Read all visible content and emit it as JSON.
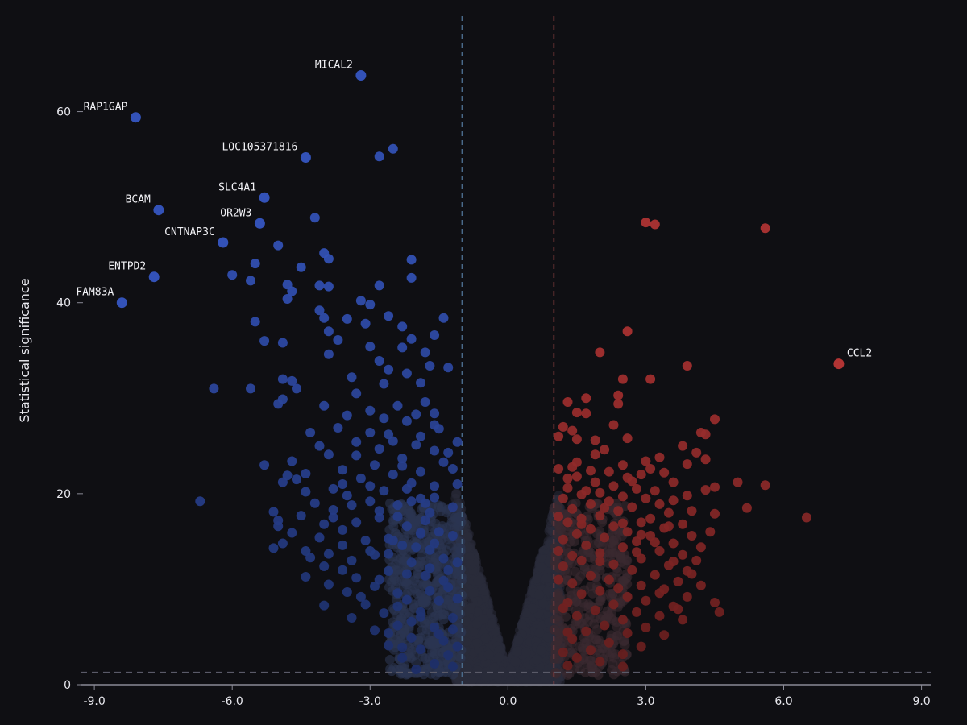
{
  "chart_data": {
    "type": "scatter",
    "title": "",
    "xlabel": "",
    "ylabel": "Statistical significance",
    "xlim": [
      -9.3,
      9.2
    ],
    "ylim": [
      0,
      70
    ],
    "x_ticks": [
      "-9.0",
      "-6.0",
      "-3.0",
      "0.0",
      "3.0",
      "6.0",
      "9.0"
    ],
    "x_tick_values": [
      -9,
      -6,
      -3,
      0,
      3,
      6,
      9
    ],
    "y_ticks": [
      "0",
      "20",
      "40",
      "60"
    ],
    "y_tick_values": [
      0,
      20,
      40,
      60
    ],
    "fold_change_thresholds": [
      -1,
      1
    ],
    "significance_threshold": 1.3,
    "colors": {
      "background": "#0f0f13",
      "down": "#3352b8",
      "up": "#b23434",
      "neutral": "#2a2c3a",
      "axis": "#8a8a96",
      "down_threshold_line": "#4a6a8a",
      "up_threshold_line": "#a04848",
      "sig_line": "#5a5a68"
    },
    "labeled_points": [
      {
        "gene": "MICAL2",
        "x": -3.2,
        "y": 63.8
      },
      {
        "gene": "RAP1GAP",
        "x": -8.1,
        "y": 59.4
      },
      {
        "gene": "LOC105371816",
        "x": -4.4,
        "y": 55.2
      },
      {
        "gene": "SLC4A1",
        "x": -5.3,
        "y": 51.0
      },
      {
        "gene": "BCAM",
        "x": -7.6,
        "y": 49.7
      },
      {
        "gene": "OR2W3",
        "x": -5.4,
        "y": 48.3
      },
      {
        "gene": "CNTNAP3C",
        "x": -6.2,
        "y": 46.3
      },
      {
        "gene": "ENTPD2",
        "x": -7.7,
        "y": 42.7
      },
      {
        "gene": "FAM83A",
        "x": -8.4,
        "y": 40.0
      },
      {
        "gene": "CCL2",
        "x": 7.2,
        "y": 33.6
      }
    ],
    "down_points": [
      [
        -2.5,
        56.1
      ],
      [
        -2.8,
        55.3
      ],
      [
        -4.2,
        48.9
      ],
      [
        -5.0,
        46.0
      ],
      [
        -4.0,
        45.2
      ],
      [
        -3.9,
        44.6
      ],
      [
        -2.1,
        44.5
      ],
      [
        -5.5,
        44.1
      ],
      [
        -4.5,
        43.7
      ],
      [
        -6.0,
        42.9
      ],
      [
        -2.1,
        42.6
      ],
      [
        -5.6,
        42.3
      ],
      [
        -4.8,
        41.9
      ],
      [
        -2.8,
        41.8
      ],
      [
        -4.1,
        41.8
      ],
      [
        -3.9,
        41.7
      ],
      [
        -4.7,
        41.2
      ],
      [
        -4.8,
        40.4
      ],
      [
        -3.2,
        40.2
      ],
      [
        -3.0,
        39.8
      ],
      [
        -4.1,
        39.2
      ],
      [
        -2.6,
        38.6
      ],
      [
        -4.0,
        38.4
      ],
      [
        -1.4,
        38.4
      ],
      [
        -3.5,
        38.3
      ],
      [
        -5.5,
        38.0
      ],
      [
        -3.1,
        37.8
      ],
      [
        -2.3,
        37.5
      ],
      [
        -3.9,
        37.0
      ],
      [
        -1.6,
        36.6
      ],
      [
        -2.1,
        36.2
      ],
      [
        -3.7,
        36.1
      ],
      [
        -5.3,
        36.0
      ],
      [
        -4.9,
        35.8
      ],
      [
        -3.0,
        35.4
      ],
      [
        -2.3,
        35.3
      ],
      [
        -1.8,
        34.8
      ],
      [
        -3.9,
        34.6
      ],
      [
        -2.8,
        33.9
      ],
      [
        -1.7,
        33.4
      ],
      [
        -1.3,
        33.2
      ],
      [
        -2.6,
        33.0
      ],
      [
        -2.2,
        32.6
      ],
      [
        -3.4,
        32.2
      ],
      [
        -4.9,
        32.0
      ],
      [
        -4.7,
        31.8
      ],
      [
        -6.4,
        31.0
      ],
      [
        -5.6,
        31.0
      ],
      [
        -4.6,
        31.0
      ],
      [
        -2.7,
        31.5
      ],
      [
        -1.9,
        31.6
      ],
      [
        -3.3,
        30.5
      ],
      [
        -4.9,
        29.9
      ],
      [
        -5.0,
        29.4
      ],
      [
        -4.0,
        29.2
      ],
      [
        -2.4,
        29.2
      ],
      [
        -2.0,
        28.3
      ],
      [
        -1.6,
        28.4
      ],
      [
        -3.0,
        28.7
      ],
      [
        -3.5,
        28.2
      ],
      [
        -2.2,
        27.6
      ],
      [
        -1.6,
        27.2
      ],
      [
        -3.7,
        26.9
      ],
      [
        -4.3,
        26.4
      ],
      [
        -2.6,
        26.2
      ],
      [
        -1.9,
        26.0
      ],
      [
        -1.1,
        25.4
      ],
      [
        -3.3,
        25.4
      ],
      [
        -4.1,
        25.0
      ],
      [
        -2.8,
        24.7
      ],
      [
        -1.6,
        24.5
      ],
      [
        -3.9,
        24.1
      ],
      [
        -2.3,
        23.7
      ],
      [
        -1.4,
        23.3
      ],
      [
        -4.7,
        23.4
      ],
      [
        -2.9,
        23.0
      ],
      [
        -5.3,
        23.0
      ],
      [
        -3.6,
        22.5
      ],
      [
        -4.4,
        22.1
      ],
      [
        -1.9,
        22.3
      ],
      [
        -1.2,
        22.6
      ],
      [
        -2.5,
        22.0
      ],
      [
        -4.8,
        21.9
      ],
      [
        -3.2,
        21.6
      ],
      [
        -4.9,
        21.2
      ],
      [
        -4.6,
        21.5
      ],
      [
        -2.1,
        21.1
      ],
      [
        -1.6,
        20.8
      ],
      [
        -3.8,
        20.5
      ],
      [
        -4.4,
        20.2
      ],
      [
        -2.7,
        20.3
      ],
      [
        -3.5,
        19.8
      ],
      [
        -1.9,
        19.5
      ],
      [
        -6.7,
        19.2
      ],
      [
        -4.2,
        19.0
      ],
      [
        -3.0,
        19.2
      ],
      [
        -2.4,
        18.8
      ],
      [
        -3.8,
        18.3
      ],
      [
        -5.1,
        18.1
      ],
      [
        -1.7,
        18.0
      ],
      [
        -4.5,
        17.7
      ],
      [
        -5.0,
        17.2
      ],
      [
        -2.8,
        17.5
      ],
      [
        -3.3,
        17.0
      ],
      [
        -4.0,
        16.8
      ],
      [
        -2.2,
        16.6
      ],
      [
        -5.0,
        16.6
      ],
      [
        -3.6,
        16.2
      ],
      [
        -4.7,
        15.9
      ],
      [
        -1.9,
        15.8
      ],
      [
        -4.1,
        15.4
      ],
      [
        -2.6,
        15.3
      ],
      [
        -3.1,
        15.1
      ],
      [
        -4.9,
        14.8
      ],
      [
        -3.6,
        14.6
      ],
      [
        -2.3,
        14.6
      ],
      [
        -5.1,
        14.3
      ],
      [
        -4.4,
        14.0
      ],
      [
        -1.7,
        14.1
      ],
      [
        -3.9,
        13.7
      ],
      [
        -2.9,
        13.6
      ],
      [
        -4.3,
        13.3
      ],
      [
        -3.4,
        13.0
      ],
      [
        -2.1,
        12.8
      ],
      [
        -4.0,
        12.4
      ],
      [
        -3.6,
        12.0
      ],
      [
        -2.6,
        11.9
      ],
      [
        -4.4,
        11.3
      ],
      [
        -3.3,
        11.2
      ],
      [
        -1.8,
        11.4
      ],
      [
        -3.9,
        10.5
      ],
      [
        -2.9,
        10.3
      ],
      [
        -3.5,
        9.7
      ],
      [
        -2.4,
        9.6
      ],
      [
        -4.0,
        8.3
      ],
      [
        -3.1,
        8.4
      ],
      [
        -2.2,
        8.9
      ],
      [
        -2.7,
        7.5
      ],
      [
        -1.9,
        7.6
      ],
      [
        -3.4,
        7.0
      ],
      [
        -2.4,
        6.2
      ],
      [
        -1.6,
        6.0
      ],
      [
        -2.9,
        5.7
      ],
      [
        -2.1,
        4.9
      ],
      [
        -1.4,
        4.6
      ],
      [
        -2.6,
        4.1
      ],
      [
        -1.9,
        3.7
      ],
      [
        -1.3,
        3.1
      ],
      [
        -2.3,
        2.8
      ],
      [
        -1.6,
        2.2
      ],
      [
        -1.2,
        1.9
      ],
      [
        -2.0,
        1.6
      ],
      [
        -1.1,
        4.0
      ],
      [
        -1.2,
        7.0
      ],
      [
        -1.3,
        10.2
      ],
      [
        -1.4,
        13.2
      ],
      [
        -1.5,
        16.0
      ],
      [
        -1.2,
        18.6
      ],
      [
        -1.1,
        21.0
      ],
      [
        -1.6,
        19.6
      ],
      [
        -1.8,
        17.2
      ],
      [
        -2.0,
        14.4
      ],
      [
        -2.2,
        11.6
      ],
      [
        -2.4,
        8.2
      ],
      [
        -2.6,
        5.4
      ],
      [
        -1.5,
        8.8
      ],
      [
        -1.7,
        12.2
      ],
      [
        -1.9,
        15.9
      ],
      [
        -2.1,
        19.2
      ],
      [
        -2.3,
        22.9
      ],
      [
        -2.5,
        25.5
      ],
      [
        -2.7,
        27.9
      ],
      [
        -3.0,
        26.4
      ],
      [
        -3.3,
        24.0
      ],
      [
        -3.6,
        21.0
      ],
      [
        -3.8,
        17.5
      ],
      [
        -3.0,
        14.0
      ],
      [
        -2.8,
        11.0
      ],
      [
        -3.2,
        9.2
      ],
      [
        -1.3,
        24.3
      ],
      [
        -1.5,
        26.8
      ],
      [
        -1.8,
        29.6
      ],
      [
        -2.0,
        25.1
      ],
      [
        -2.2,
        20.5
      ],
      [
        -2.4,
        17.6
      ],
      [
        -2.6,
        13.7
      ],
      [
        -1.4,
        10.9
      ],
      [
        -1.6,
        14.8
      ],
      [
        -1.8,
        19.0
      ],
      [
        -1.2,
        15.6
      ],
      [
        -1.3,
        12.0
      ],
      [
        -1.7,
        9.8
      ],
      [
        -1.9,
        7.1
      ],
      [
        -2.1,
        6.6
      ],
      [
        -2.3,
        3.9
      ],
      [
        -1.5,
        5.3
      ],
      [
        -1.1,
        12.8
      ],
      [
        -1.1,
        9.0
      ],
      [
        -1.2,
        5.8
      ],
      [
        -2.8,
        18.2
      ],
      [
        -3.0,
        20.8
      ],
      [
        -3.4,
        18.8
      ],
      [
        -2.5,
        15.1
      ]
    ],
    "up_points": [
      [
        5.6,
        47.8
      ],
      [
        3.0,
        48.4
      ],
      [
        3.2,
        48.2
      ],
      [
        2.6,
        37.0
      ],
      [
        2.0,
        34.8
      ],
      [
        3.9,
        33.4
      ],
      [
        3.1,
        32.0
      ],
      [
        2.5,
        32.0
      ],
      [
        1.7,
        30.0
      ],
      [
        2.4,
        30.3
      ],
      [
        1.3,
        29.6
      ],
      [
        2.4,
        29.4
      ],
      [
        1.5,
        28.5
      ],
      [
        1.7,
        28.4
      ],
      [
        4.5,
        27.8
      ],
      [
        1.2,
        27.0
      ],
      [
        1.4,
        26.6
      ],
      [
        4.2,
        26.4
      ],
      [
        4.3,
        26.2
      ],
      [
        1.1,
        26.0
      ],
      [
        2.6,
        25.8
      ],
      [
        1.5,
        25.7
      ],
      [
        3.8,
        25.0
      ],
      [
        2.1,
        24.6
      ],
      [
        4.1,
        24.3
      ],
      [
        1.9,
        24.1
      ],
      [
        3.3,
        23.8
      ],
      [
        4.3,
        23.6
      ],
      [
        3.0,
        23.4
      ],
      [
        3.9,
        23.1
      ],
      [
        2.5,
        23.0
      ],
      [
        1.4,
        22.8
      ],
      [
        1.1,
        22.6
      ],
      [
        1.8,
        22.4
      ],
      [
        2.2,
        22.3
      ],
      [
        3.4,
        22.2
      ],
      [
        2.9,
        22.0
      ],
      [
        1.5,
        21.8
      ],
      [
        2.6,
        21.7
      ],
      [
        5.0,
        21.2
      ],
      [
        3.6,
        21.2
      ],
      [
        1.9,
        21.2
      ],
      [
        5.6,
        20.9
      ],
      [
        2.3,
        20.8
      ],
      [
        4.5,
        20.7
      ],
      [
        1.3,
        20.6
      ],
      [
        2.8,
        20.5
      ],
      [
        4.3,
        20.4
      ],
      [
        3.2,
        20.3
      ],
      [
        2.0,
        20.1
      ],
      [
        1.6,
        19.9
      ],
      [
        3.9,
        19.8
      ],
      [
        2.5,
        19.7
      ],
      [
        3.0,
        19.5
      ],
      [
        1.2,
        19.5
      ],
      [
        3.6,
        19.3
      ],
      [
        2.2,
        19.2
      ],
      [
        3.3,
        18.9
      ],
      [
        1.8,
        18.9
      ],
      [
        5.2,
        18.5
      ],
      [
        2.7,
        18.6
      ],
      [
        1.4,
        18.4
      ],
      [
        4.5,
        17.9
      ],
      [
        2.4,
        18.2
      ],
      [
        3.5,
        18.0
      ],
      [
        6.5,
        17.5
      ],
      [
        2.0,
        17.7
      ],
      [
        1.6,
        17.4
      ],
      [
        3.1,
        17.4
      ],
      [
        2.9,
        17.0
      ],
      [
        1.3,
        17.0
      ],
      [
        3.8,
        16.8
      ],
      [
        2.3,
        16.6
      ],
      [
        1.8,
        16.3
      ],
      [
        3.4,
        16.4
      ],
      [
        2.6,
        16.0
      ],
      [
        1.5,
        15.8
      ],
      [
        4.0,
        15.6
      ],
      [
        3.1,
        15.6
      ],
      [
        2.1,
        15.4
      ],
      [
        1.2,
        15.2
      ],
      [
        2.8,
        15.0
      ],
      [
        3.6,
        14.8
      ],
      [
        1.7,
        14.6
      ],
      [
        4.2,
        14.4
      ],
      [
        2.5,
        14.4
      ],
      [
        3.3,
        14.0
      ],
      [
        2.0,
        13.8
      ],
      [
        1.4,
        13.5
      ],
      [
        3.8,
        13.6
      ],
      [
        2.9,
        13.2
      ],
      [
        4.1,
        13.0
      ],
      [
        1.6,
        13.0
      ],
      [
        2.3,
        12.6
      ],
      [
        3.5,
        12.5
      ],
      [
        1.2,
        12.4
      ],
      [
        2.7,
        12.0
      ],
      [
        4.0,
        11.6
      ],
      [
        3.2,
        11.5
      ],
      [
        1.8,
        11.4
      ],
      [
        2.2,
        11.0
      ],
      [
        3.7,
        10.8
      ],
      [
        1.4,
        10.6
      ],
      [
        2.9,
        10.4
      ],
      [
        4.2,
        10.4
      ],
      [
        3.4,
        10.0
      ],
      [
        2.0,
        9.8
      ],
      [
        1.6,
        9.5
      ],
      [
        2.6,
        9.2
      ],
      [
        3.9,
        9.2
      ],
      [
        3.0,
        8.8
      ],
      [
        1.3,
        8.6
      ],
      [
        4.5,
        8.6
      ],
      [
        2.3,
        8.4
      ],
      [
        3.6,
        8.2
      ],
      [
        1.9,
        7.8
      ],
      [
        2.8,
        7.6
      ],
      [
        4.6,
        7.6
      ],
      [
        3.3,
        7.2
      ],
      [
        1.5,
        7.2
      ],
      [
        2.5,
        6.8
      ],
      [
        3.8,
        6.8
      ],
      [
        2.1,
        6.2
      ],
      [
        3.0,
        6.0
      ],
      [
        1.7,
        5.6
      ],
      [
        2.6,
        5.4
      ],
      [
        3.4,
        5.2
      ],
      [
        1.4,
        4.8
      ],
      [
        2.2,
        4.4
      ],
      [
        2.9,
        4.0
      ],
      [
        1.8,
        3.6
      ],
      [
        2.5,
        3.2
      ],
      [
        1.5,
        2.8
      ],
      [
        2.0,
        2.4
      ],
      [
        1.3,
        2.0
      ],
      [
        2.5,
        1.9
      ],
      [
        1.1,
        17.6
      ],
      [
        1.1,
        14.0
      ],
      [
        1.1,
        11.0
      ],
      [
        1.2,
        8.0
      ],
      [
        1.3,
        5.5
      ],
      [
        1.2,
        3.4
      ],
      [
        1.5,
        23.3
      ],
      [
        1.9,
        25.6
      ],
      [
        2.3,
        27.2
      ],
      [
        2.7,
        21.3
      ],
      [
        3.1,
        22.6
      ],
      [
        3.5,
        16.6
      ],
      [
        3.9,
        11.9
      ],
      [
        4.4,
        16.0
      ],
      [
        1.6,
        16.8
      ],
      [
        2.0,
        12.9
      ],
      [
        2.4,
        10.1
      ],
      [
        2.8,
        13.9
      ],
      [
        3.2,
        14.9
      ],
      [
        3.6,
        12.9
      ],
      [
        4.0,
        18.2
      ],
      [
        1.3,
        21.6
      ],
      [
        1.7,
        20.3
      ],
      [
        2.1,
        18.5
      ],
      [
        2.5,
        16.9
      ],
      [
        2.9,
        15.7
      ],
      [
        3.3,
        9.6
      ],
      [
        3.7,
        7.9
      ]
    ]
  }
}
